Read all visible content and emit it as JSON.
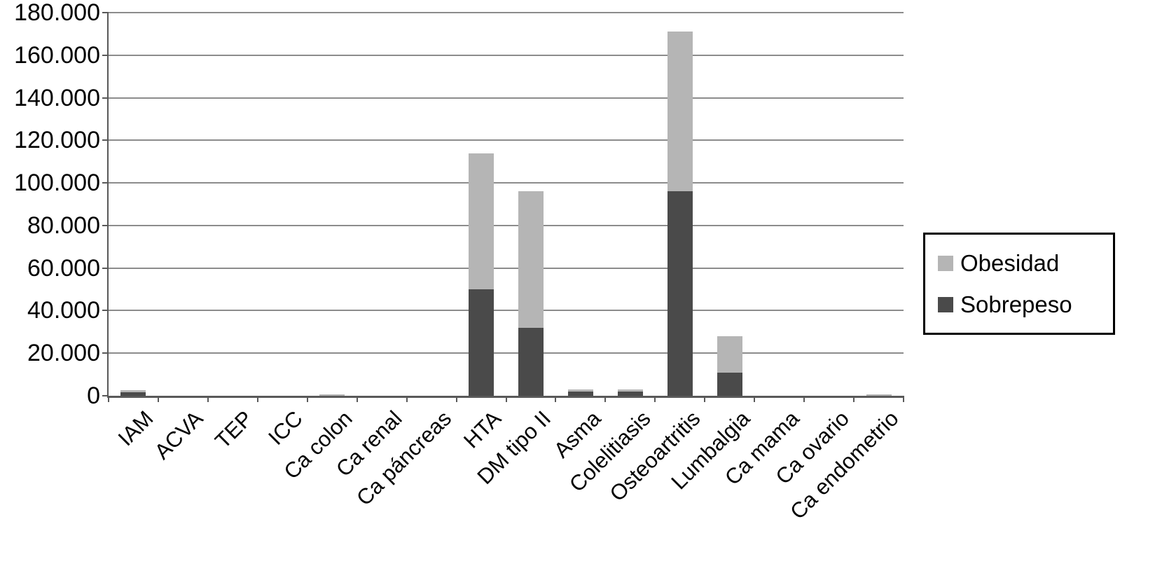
{
  "chart_data": {
    "type": "bar",
    "stacked": true,
    "title": "",
    "xlabel": "",
    "ylabel": "",
    "ylim": [
      0,
      180000
    ],
    "grid": true,
    "legend_position": "right",
    "categories": [
      "IAM",
      "ACVA",
      "TEP",
      "ICC",
      "Ca colon",
      "Ca renal",
      "Ca páncreas",
      "HTA",
      "DM tipo II",
      "Asma",
      "Colelitiasis",
      "Osteoartritis",
      "Lumbalgia",
      "Ca mama",
      "Ca ovario",
      "Ca endometrio"
    ],
    "series": [
      {
        "name": "Obesidad",
        "color": "#b5b5b5",
        "values": [
          1000,
          0,
          0,
          0,
          700,
          0,
          0,
          64000,
          64000,
          1000,
          1000,
          75000,
          17000,
          0,
          0,
          700
        ]
      },
      {
        "name": "Sobrepeso",
        "color": "#4a4a4a",
        "values": [
          1500,
          0,
          0,
          0,
          0,
          0,
          0,
          50000,
          32000,
          2000,
          2000,
          96000,
          11000,
          0,
          0,
          0
        ]
      }
    ],
    "yticks": [
      {
        "value": 0,
        "label": "0"
      },
      {
        "value": 20000,
        "label": "20.000"
      },
      {
        "value": 40000,
        "label": "40.000"
      },
      {
        "value": 60000,
        "label": "60.000"
      },
      {
        "value": 80000,
        "label": "80.000"
      },
      {
        "value": 100000,
        "label": "100.000"
      },
      {
        "value": 120000,
        "label": "120.000"
      },
      {
        "value": 140000,
        "label": "140.000"
      },
      {
        "value": 160000,
        "label": "160.000"
      },
      {
        "value": 180000,
        "label": "180.000"
      }
    ]
  },
  "legend": {
    "items": [
      {
        "label": "Obesidad",
        "color": "#b5b5b5"
      },
      {
        "label": "Sobrepeso",
        "color": "#4a4a4a"
      }
    ]
  }
}
